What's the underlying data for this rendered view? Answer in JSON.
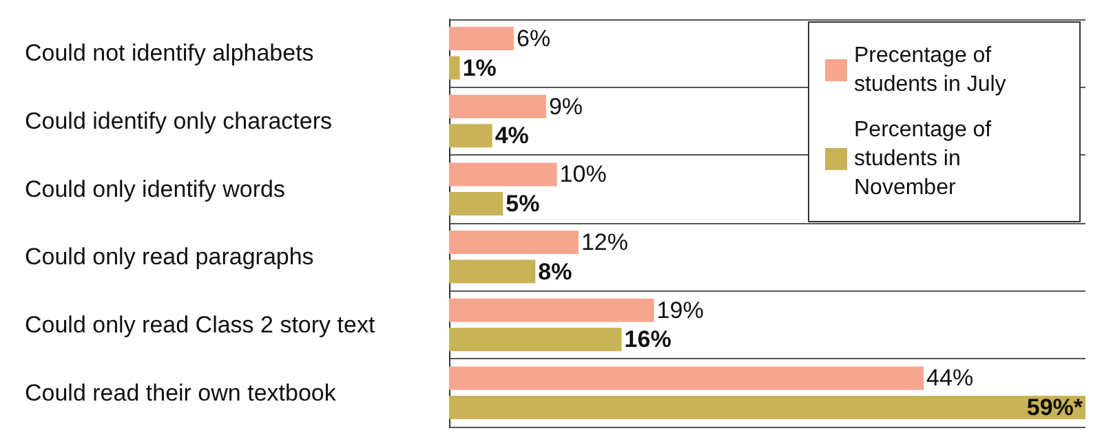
{
  "chart_data": {
    "type": "bar",
    "orientation": "horizontal",
    "categories": [
      "Could not identify alphabets",
      "Could identify only characters",
      "Could only identify words",
      "Could only read paragraphs",
      "Could only read Class 2 story text",
      "Could read their own textbook"
    ],
    "series": [
      {
        "name": "Precentage of students in July",
        "color": "#f6a68d",
        "values": [
          6,
          9,
          10,
          12,
          19,
          44
        ],
        "value_labels": [
          "6%",
          "9%",
          "10%",
          "12%",
          "19%",
          "44%"
        ]
      },
      {
        "name": "Percentage of students in November",
        "color": "#c8b357",
        "values": [
          1,
          4,
          5,
          8,
          16,
          59
        ],
        "value_labels": [
          "1%",
          "4%",
          "5%",
          "8%",
          "16%",
          "59%*"
        ]
      }
    ],
    "xlim": [
      0,
      59
    ],
    "tick_labels": "y",
    "grid": "y",
    "legend": "top right"
  }
}
